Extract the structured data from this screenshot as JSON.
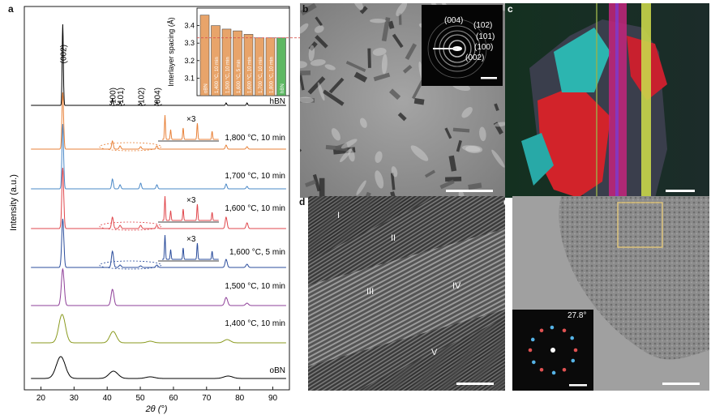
{
  "panel_labels": {
    "a": "a",
    "b": "b",
    "c": "c",
    "d": "d",
    "e": "e"
  },
  "chart_data": {
    "type": "line",
    "xlabel": "2θ (°)",
    "ylabel": "Intensity (a.u.)",
    "xlim": [
      15,
      95
    ],
    "xticks": [
      20,
      30,
      40,
      50,
      60,
      70,
      80,
      90
    ],
    "peak_labels": [
      {
        "text": "(002)",
        "x": 26.6
      },
      {
        "text": "(100)",
        "x": 41.6
      },
      {
        "text": "(101)",
        "x": 43.9
      },
      {
        "text": "(102)",
        "x": 50.1
      },
      {
        "text": "(004)",
        "x": 55.0
      }
    ],
    "series": [
      {
        "name": "hBN",
        "color": "#000000"
      },
      {
        "name": "1,800 °C, 10 min",
        "color": "#e8823a"
      },
      {
        "name": "1,700 °C, 10 min",
        "color": "#4a88c7"
      },
      {
        "name": "1,600 °C, 10 min",
        "color": "#e0474c"
      },
      {
        "name": "1,600 °C, 5 min",
        "color": "#2b4d9c"
      },
      {
        "name": "1,500 °C, 10 min",
        "color": "#8e3f98"
      },
      {
        "name": "1,400 °C, 10 min",
        "color": "#8a9a1f"
      },
      {
        "name": "oBN",
        "color": "#000000"
      }
    ],
    "magnification_label": "×3",
    "inset": {
      "type": "bar",
      "ylabel": "Interlayer spacing (Å)",
      "ylim": [
        3.0,
        3.5
      ],
      "yticks": [
        "3.1",
        "3.2",
        "3.3",
        "3.4"
      ],
      "reference_line": 3.33,
      "categories": [
        "oBN",
        "1,400 °C, 10 min",
        "1,500 °C, 10 min",
        "1,600 °C, 5 min",
        "1,600 °C, 10 min",
        "1,700 °C, 10 min",
        "1,800 °C, 10 min",
        "hBN"
      ],
      "values": [
        3.46,
        3.4,
        3.38,
        3.37,
        3.35,
        3.33,
        3.33,
        3.33
      ],
      "colors": [
        "#e8a46a",
        "#e8a46a",
        "#e8a46a",
        "#e8a46a",
        "#e8a46a",
        "#e8a46a",
        "#e8a46a",
        "#5db863"
      ]
    }
  },
  "panel_b": {
    "diffraction_rings": [
      "(004)",
      "(102)",
      "(101)",
      "(100)",
      "(002)"
    ]
  },
  "panel_d": {
    "regions": [
      "I",
      "II",
      "III",
      "IV",
      "V"
    ]
  },
  "panel_e": {
    "fft_angle": "27.8°"
  }
}
